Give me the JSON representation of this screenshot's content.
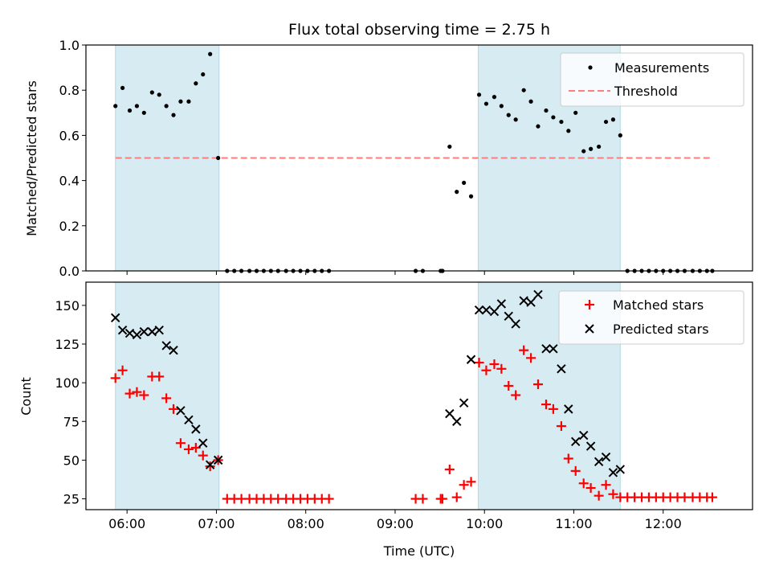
{
  "figure": {
    "title": "Flux total observing time = 2.75 h"
  },
  "chart_data": [
    {
      "type": "scatter",
      "ylabel": "Matched/Predicted stars",
      "xlabel": "",
      "xlim": [
        5.54,
        13.0
      ],
      "ylim": [
        0,
        1.0
      ],
      "yticks": [
        0.0,
        0.2,
        0.4,
        0.6,
        0.8,
        1.0
      ],
      "ytick_labels": [
        "0.0",
        "0.2",
        "0.4",
        "0.6",
        "0.8",
        "1.0"
      ],
      "shaded_spans": [
        [
          5.87,
          7.03
        ],
        [
          9.93,
          11.52
        ]
      ],
      "legend_position": "top-right",
      "series": [
        {
          "name": "Measurements",
          "kind": "dots",
          "color": "#000000",
          "x": [
            5.87,
            5.95,
            6.03,
            6.11,
            6.19,
            6.28,
            6.36,
            6.44,
            6.52,
            6.6,
            6.69,
            6.77,
            6.85,
            6.93,
            7.02,
            7.12,
            7.2,
            7.28,
            7.37,
            7.45,
            7.53,
            7.61,
            7.69,
            7.78,
            7.86,
            7.94,
            8.02,
            8.1,
            8.18,
            8.26,
            9.23,
            9.31,
            9.51,
            9.53,
            9.61,
            9.69,
            9.77,
            9.85,
            9.94,
            10.02,
            10.11,
            10.19,
            10.27,
            10.35,
            10.44,
            10.52,
            10.6,
            10.69,
            10.77,
            10.86,
            10.94,
            11.02,
            11.11,
            11.19,
            11.28,
            11.36,
            11.44,
            11.52,
            11.6,
            11.68,
            11.76,
            11.84,
            11.92,
            12.0,
            12.08,
            12.16,
            12.24,
            12.33,
            12.41,
            12.49,
            12.55
          ],
          "y": [
            0.73,
            0.81,
            0.71,
            0.73,
            0.7,
            0.79,
            0.78,
            0.73,
            0.69,
            0.75,
            0.75,
            0.83,
            0.87,
            0.96,
            0.5,
            0,
            0,
            0,
            0,
            0,
            0,
            0,
            0,
            0,
            0,
            0,
            0,
            0,
            0,
            0,
            0,
            0,
            0,
            0,
            0.55,
            0.35,
            0.39,
            0.33,
            0.78,
            0.74,
            0.77,
            0.73,
            0.69,
            0.67,
            0.8,
            0.75,
            0.64,
            0.71,
            0.68,
            0.66,
            0.62,
            0.7,
            0.53,
            0.54,
            0.55,
            0.66,
            0.67,
            0.6,
            0,
            0,
            0,
            0,
            0,
            0,
            0,
            0,
            0,
            0,
            0,
            0,
            0
          ]
        },
        {
          "name": "Threshold",
          "kind": "dashed-line",
          "color": "#ff7f7f",
          "x": [
            5.87,
            12.55
          ],
          "y": [
            0.5,
            0.5
          ]
        }
      ]
    },
    {
      "type": "scatter",
      "ylabel": "Count",
      "xlabel": "Time (UTC)",
      "xlim": [
        5.54,
        13.0
      ],
      "ylim": [
        18,
        165
      ],
      "yticks": [
        25,
        50,
        75,
        100,
        125,
        150
      ],
      "ytick_labels": [
        "25",
        "50",
        "75",
        "100",
        "125",
        "150"
      ],
      "xticks": [
        6,
        7,
        8,
        9,
        10,
        11,
        12
      ],
      "xtick_labels": [
        "06:00",
        "07:00",
        "08:00",
        "09:00",
        "10:00",
        "11:00",
        "12:00"
      ],
      "shaded_spans": [
        [
          5.87,
          7.03
        ],
        [
          9.93,
          11.52
        ]
      ],
      "legend_position": "top-right",
      "series": [
        {
          "name": "Matched stars",
          "kind": "plus",
          "color": "#ff0000",
          "x": [
            5.87,
            5.95,
            6.03,
            6.11,
            6.19,
            6.28,
            6.36,
            6.44,
            6.52,
            6.6,
            6.69,
            6.77,
            6.85,
            6.93,
            7.02,
            7.12,
            7.2,
            7.28,
            7.37,
            7.45,
            7.53,
            7.61,
            7.69,
            7.78,
            7.86,
            7.94,
            8.02,
            8.1,
            8.18,
            8.26,
            9.23,
            9.31,
            9.51,
            9.53,
            9.61,
            9.69,
            9.77,
            9.85,
            9.94,
            10.02,
            10.11,
            10.19,
            10.27,
            10.35,
            10.44,
            10.52,
            10.6,
            10.69,
            10.77,
            10.86,
            10.94,
            11.02,
            11.11,
            11.19,
            11.28,
            11.36,
            11.44,
            11.52,
            11.6,
            11.68,
            11.76,
            11.84,
            11.92,
            12.0,
            12.08,
            12.16,
            12.24,
            12.33,
            12.41,
            12.49,
            12.55
          ],
          "y": [
            103,
            108,
            93,
            94,
            92,
            104,
            104,
            90,
            83,
            61,
            57,
            58,
            53,
            46,
            50,
            25,
            25,
            25,
            25,
            25,
            25,
            25,
            25,
            25,
            25,
            25,
            25,
            25,
            25,
            25,
            25,
            25,
            25,
            25,
            44,
            26,
            34,
            36,
            113,
            108,
            112,
            109,
            98,
            92,
            121,
            116,
            99,
            86,
            83,
            72,
            51,
            43,
            35,
            32,
            27,
            34,
            28,
            26,
            26,
            26,
            26,
            26,
            26,
            26,
            26,
            26,
            26,
            26,
            26,
            26,
            26
          ]
        },
        {
          "name": "Predicted stars",
          "kind": "x",
          "color": "#000000",
          "x": [
            5.87,
            5.95,
            6.03,
            6.11,
            6.19,
            6.28,
            6.36,
            6.44,
            6.52,
            6.6,
            6.69,
            6.77,
            6.85,
            6.93,
            7.02,
            9.61,
            9.69,
            9.77,
            9.85,
            9.94,
            10.02,
            10.11,
            10.19,
            10.27,
            10.35,
            10.44,
            10.52,
            10.6,
            10.69,
            10.77,
            10.86,
            10.94,
            11.02,
            11.11,
            11.19,
            11.28,
            11.36,
            11.44,
            11.52
          ],
          "y": [
            142,
            134,
            132,
            131,
            133,
            133,
            134,
            124,
            121,
            82,
            76,
            70,
            61,
            47,
            50,
            80,
            75,
            87,
            115,
            147,
            147,
            146,
            151,
            143,
            138,
            153,
            152,
            157,
            122,
            122,
            109,
            83,
            62,
            66,
            59,
            49,
            52,
            42,
            44
          ]
        }
      ]
    }
  ]
}
